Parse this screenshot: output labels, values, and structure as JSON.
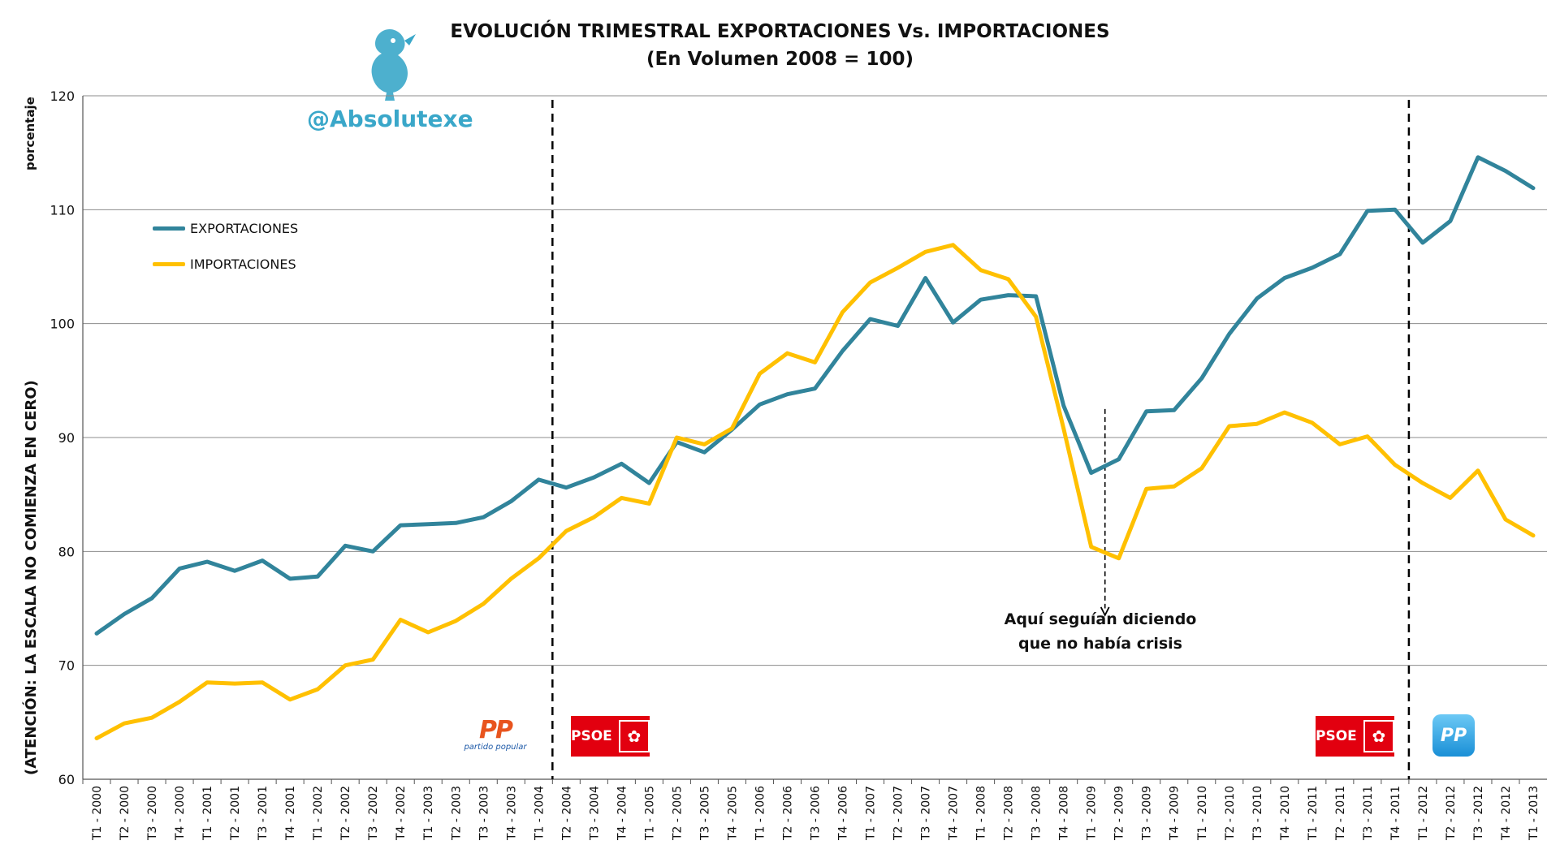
{
  "title": "EVOLUCIÓN TRIMESTRAL EXPORTACIONES Vs. IMPORTACIONES",
  "subtitle": "(En Volumen 2008 = 100)",
  "watermark_handle": "@Absolutexe",
  "annotation": {
    "line1": "Aquí seguían diciendo",
    "line2": "que no había crisis",
    "at_category": "T1 - 2009"
  },
  "party_periods": {
    "dividers_after": [
      "T1 - 2004",
      "T4 - 2011"
    ],
    "logos": [
      {
        "name": "PP",
        "subtitle": "partido popular",
        "style": "old"
      },
      {
        "name": "PSOE",
        "style": "psoe"
      },
      {
        "name": "PSOE",
        "style": "psoe"
      },
      {
        "name": "PP",
        "style": "new"
      }
    ]
  },
  "colors": {
    "exportaciones": "#31849b",
    "importaciones": "#ffc000",
    "grid": "#8c8c8c",
    "handle": "#3aa7c9"
  },
  "chart_data": {
    "type": "line",
    "title": "EVOLUCIÓN TRIMESTRAL EXPORTACIONES Vs. IMPORTACIONES",
    "subtitle": "(En Volumen 2008 = 100)",
    "ylabel": "porcentaje",
    "ylabel_note": "(ATENCIÓN: LA ESCALA NO COMIENZA EN CERO)",
    "xlabel": "",
    "ylim": [
      60,
      120
    ],
    "yticks": [
      60,
      70,
      80,
      90,
      100,
      110,
      120
    ],
    "grid": true,
    "legend_position": "top-left",
    "categories": [
      "T1 - 2000",
      "T2 - 2000",
      "T3 - 2000",
      "T4 - 2000",
      "T1 - 2001",
      "T2 - 2001",
      "T3 - 2001",
      "T4 - 2001",
      "T1 - 2002",
      "T2 - 2002",
      "T3 - 2002",
      "T4 - 2002",
      "T1 - 2003",
      "T2 - 2003",
      "T3 - 2003",
      "T4 - 2003",
      "T1 - 2004",
      "T2 - 2004",
      "T3 - 2004",
      "T4 - 2004",
      "T1 - 2005",
      "T2 - 2005",
      "T3 - 2005",
      "T4 - 2005",
      "T1 - 2006",
      "T2 - 2006",
      "T3 - 2006",
      "T4 - 2006",
      "T1 - 2007",
      "T2 - 2007",
      "T3 - 2007",
      "T4 - 2007",
      "T1 - 2008",
      "T2 - 2008",
      "T3 - 2008",
      "T4 - 2008",
      "T1 - 2009",
      "T2 - 2009",
      "T3 - 2009",
      "T4 - 2009",
      "T1 - 2010",
      "T2 - 2010",
      "T3 - 2010",
      "T4 - 2010",
      "T1 - 2011",
      "T2 - 2011",
      "T3 - 2011",
      "T4 - 2011",
      "T1 - 2012",
      "T2 - 2012",
      "T3 - 2012",
      "T4 - 2012",
      "T1 - 2013"
    ],
    "series": [
      {
        "name": "EXPORTACIONES",
        "color": "#31849b",
        "values": [
          72.8,
          74.5,
          75.9,
          78.5,
          79.1,
          78.3,
          79.2,
          77.6,
          77.8,
          80.5,
          80.0,
          82.3,
          82.4,
          82.5,
          83.0,
          84.4,
          86.3,
          85.6,
          86.5,
          87.7,
          86.0,
          89.6,
          88.7,
          90.7,
          92.9,
          93.8,
          94.3,
          97.6,
          100.4,
          99.8,
          104.0,
          100.1,
          102.1,
          102.5,
          102.4,
          92.8,
          86.9,
          88.1,
          92.3,
          92.4,
          95.2,
          99.1,
          102.2,
          104.0,
          104.9,
          106.1,
          109.9,
          110.0,
          107.1,
          109.0,
          114.6,
          113.4,
          111.9
        ]
      },
      {
        "name": "IMPORTACIONES",
        "color": "#ffc000",
        "values": [
          63.6,
          64.9,
          65.4,
          66.8,
          68.5,
          68.4,
          68.5,
          67.0,
          67.9,
          70.0,
          70.5,
          74.0,
          72.9,
          73.9,
          75.4,
          77.6,
          79.4,
          81.8,
          83.0,
          84.7,
          84.2,
          90.0,
          89.4,
          90.8,
          95.6,
          97.4,
          96.6,
          101.0,
          103.6,
          104.9,
          106.3,
          106.9,
          104.7,
          103.9,
          100.6,
          90.8,
          80.4,
          79.4,
          85.5,
          85.7,
          87.3,
          91.0,
          91.2,
          92.2,
          91.3,
          89.4,
          90.1,
          87.6,
          86.0,
          84.7,
          87.1,
          82.8,
          81.4
        ]
      }
    ]
  }
}
